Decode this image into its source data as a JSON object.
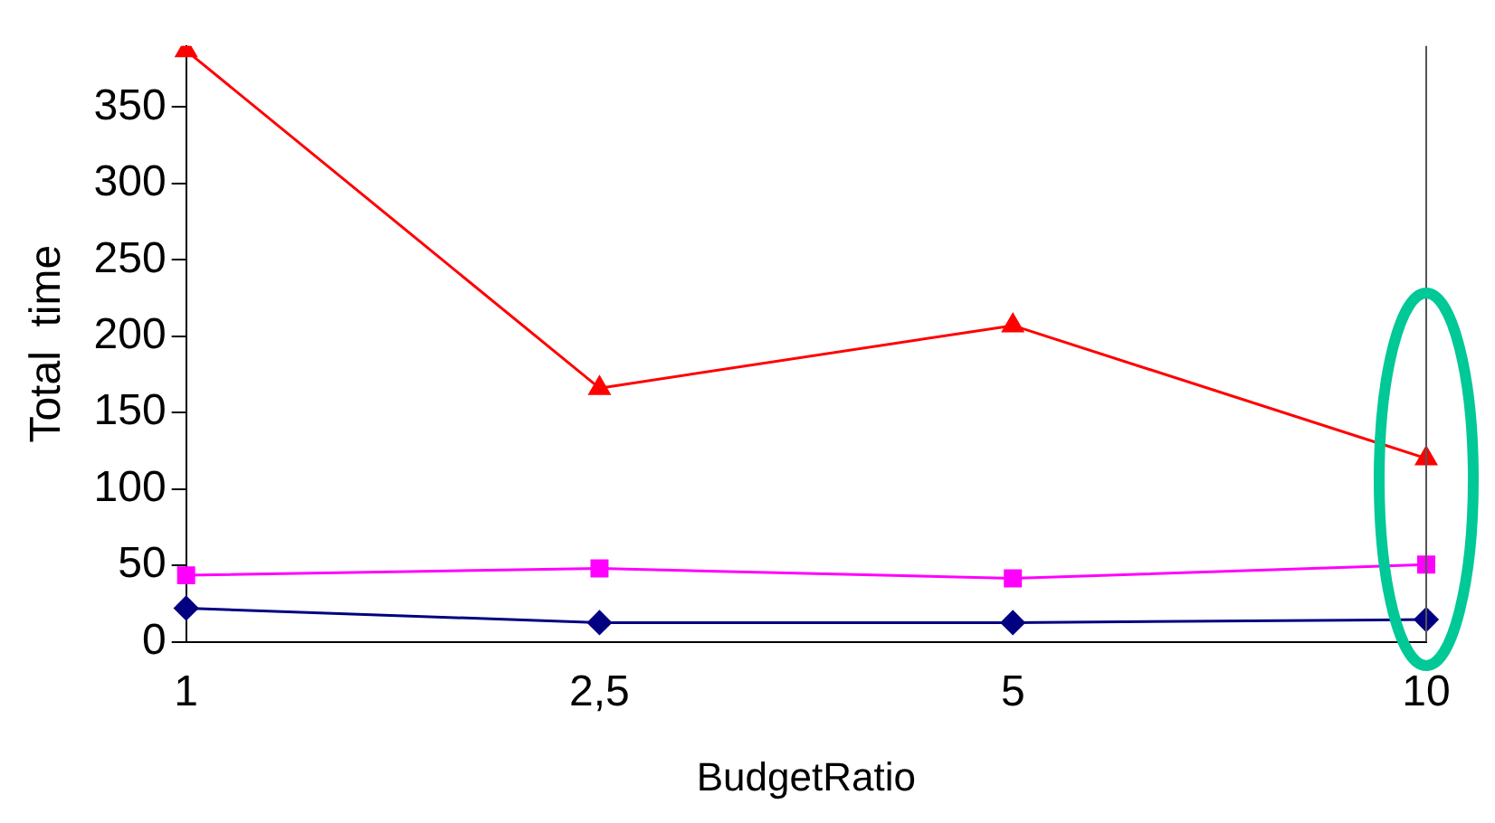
{
  "chart_data": {
    "type": "line",
    "xlabel": "BudgetRatio",
    "ylabel": "Total  time",
    "categories": [
      "1",
      "2,5",
      "5",
      "10"
    ],
    "series": [
      {
        "color": "#000080",
        "marker": "diamond",
        "values": [
          22,
          12.5,
          12.5,
          14.5
        ]
      },
      {
        "color": "#ff00ff",
        "marker": "square",
        "values": [
          43.5,
          48,
          41.5,
          50.5
        ]
      },
      {
        "color": "#ff0000",
        "marker": "triangle",
        "values": [
          387,
          166,
          207,
          120
        ]
      }
    ],
    "ylim": [
      0,
      390
    ],
    "yticks": [
      0,
      50,
      100,
      150,
      200,
      250,
      300,
      350
    ],
    "grid": false,
    "legend": false
  }
}
